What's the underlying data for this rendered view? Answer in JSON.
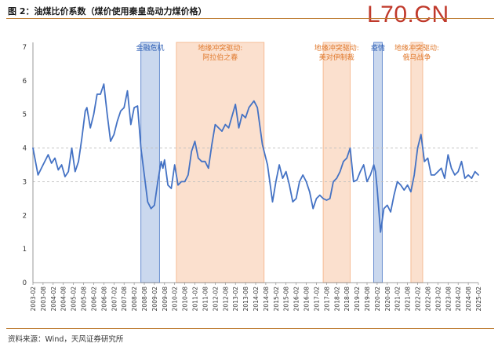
{
  "header": {
    "title": "图 2：油煤比价系数（煤价使用秦皇岛动力煤价格）",
    "watermark": "L70.CN"
  },
  "footer": {
    "source": "资料来源：Wind，天风证券研究所"
  },
  "colors": {
    "line": "#4472c4",
    "crisis_band": "#b4c7e7",
    "conflict_band": "#f8cbad",
    "crisis_text": "#2e5fb5",
    "conflict_text": "#e07a2e",
    "rule": "#bd7a2f"
  },
  "chart_data": {
    "type": "line",
    "title": "",
    "xlabel": "",
    "ylabel": "",
    "ylim": [
      0,
      7
    ],
    "yticks": [
      0,
      1,
      2,
      3,
      4,
      5,
      6,
      7
    ],
    "grid": "dashed horizontal at 3 and 4",
    "x_start": "2003-02",
    "x_end": "2025-02",
    "xtick_labels": [
      "2003-02",
      "2003-08",
      "2004-02",
      "2004-08",
      "2005-02",
      "2005-08",
      "2006-02",
      "2006-08",
      "2007-02",
      "2007-08",
      "2008-02",
      "2008-08",
      "2009-02",
      "2009-08",
      "2010-02",
      "2010-08",
      "2011-02",
      "2011-08",
      "2012-02",
      "2012-08",
      "2013-02",
      "2013-08",
      "2014-02",
      "2014-08",
      "2015-02",
      "2015-08",
      "2016-02",
      "2016-08",
      "2017-02",
      "2017-08",
      "2018-02",
      "2018-08",
      "2019-02",
      "2019-08",
      "2020-02",
      "2020-08",
      "2021-02",
      "2021-08",
      "2022-02",
      "2022-08",
      "2023-02",
      "2023-08",
      "2024-02",
      "2024-08",
      "2025-02"
    ],
    "bands": [
      {
        "start": "2008-06",
        "end": "2009-05",
        "kind": "crisis",
        "label": [
          "金融危机"
        ]
      },
      {
        "start": "2010-03",
        "end": "2014-07",
        "kind": "conflict",
        "label": [
          "地缘冲突驱动:",
          "阿拉伯之春"
        ]
      },
      {
        "start": "2017-06",
        "end": "2018-10",
        "kind": "conflict",
        "label": [
          "地缘冲突驱动:",
          "美对伊制裁"
        ]
      },
      {
        "start": "2019-12",
        "end": "2020-05",
        "kind": "crisis",
        "label": [
          "疫情"
        ]
      },
      {
        "start": "2021-10",
        "end": "2022-05",
        "kind": "conflict",
        "label": [
          "地缘冲突驱动:",
          "俄乌战争"
        ]
      }
    ],
    "series": [
      {
        "values": [
          [
            "2003-02",
            4.0
          ],
          [
            "2003-05",
            3.2
          ],
          [
            "2003-08",
            3.5
          ],
          [
            "2003-11",
            3.8
          ],
          [
            "2004-01",
            3.55
          ],
          [
            "2004-03",
            3.7
          ],
          [
            "2004-05",
            3.35
          ],
          [
            "2004-07",
            3.5
          ],
          [
            "2004-09",
            3.15
          ],
          [
            "2004-11",
            3.3
          ],
          [
            "2005-01",
            4.0
          ],
          [
            "2005-03",
            3.3
          ],
          [
            "2005-05",
            3.6
          ],
          [
            "2005-07",
            4.3
          ],
          [
            "2005-09",
            5.1
          ],
          [
            "2005-10",
            5.2
          ],
          [
            "2005-12",
            4.6
          ],
          [
            "2006-02",
            5.0
          ],
          [
            "2006-04",
            5.6
          ],
          [
            "2006-06",
            5.6
          ],
          [
            "2006-08",
            5.9
          ],
          [
            "2006-10",
            5.0
          ],
          [
            "2006-12",
            4.2
          ],
          [
            "2007-02",
            4.4
          ],
          [
            "2007-04",
            4.8
          ],
          [
            "2007-06",
            5.1
          ],
          [
            "2007-08",
            5.2
          ],
          [
            "2007-10",
            5.7
          ],
          [
            "2007-12",
            4.7
          ],
          [
            "2008-02",
            5.2
          ],
          [
            "2008-04",
            5.25
          ],
          [
            "2008-06",
            4.0
          ],
          [
            "2008-08",
            3.2
          ],
          [
            "2008-10",
            2.4
          ],
          [
            "2008-12",
            2.2
          ],
          [
            "2009-02",
            2.3
          ],
          [
            "2009-04",
            3.0
          ],
          [
            "2009-06",
            3.6
          ],
          [
            "2009-07",
            3.4
          ],
          [
            "2009-08",
            3.65
          ],
          [
            "2009-10",
            2.9
          ],
          [
            "2009-12",
            2.8
          ],
          [
            "2010-02",
            3.5
          ],
          [
            "2010-04",
            2.9
          ],
          [
            "2010-06",
            3.0
          ],
          [
            "2010-08",
            3.0
          ],
          [
            "2010-10",
            3.2
          ],
          [
            "2010-12",
            3.9
          ],
          [
            "2011-02",
            4.2
          ],
          [
            "2011-04",
            3.7
          ],
          [
            "2011-06",
            3.6
          ],
          [
            "2011-08",
            3.6
          ],
          [
            "2011-10",
            3.4
          ],
          [
            "2011-12",
            4.1
          ],
          [
            "2012-02",
            4.7
          ],
          [
            "2012-04",
            4.6
          ],
          [
            "2012-06",
            4.5
          ],
          [
            "2012-08",
            4.7
          ],
          [
            "2012-10",
            4.6
          ],
          [
            "2013-02",
            5.3
          ],
          [
            "2013-04",
            4.6
          ],
          [
            "2013-06",
            5.0
          ],
          [
            "2013-08",
            4.9
          ],
          [
            "2013-10",
            5.2
          ],
          [
            "2014-01",
            5.4
          ],
          [
            "2014-03",
            5.2
          ],
          [
            "2014-06",
            4.1
          ],
          [
            "2014-09",
            3.5
          ],
          [
            "2014-12",
            2.4
          ],
          [
            "2015-02",
            3.0
          ],
          [
            "2015-04",
            3.5
          ],
          [
            "2015-06",
            3.1
          ],
          [
            "2015-08",
            3.3
          ],
          [
            "2015-10",
            2.9
          ],
          [
            "2015-12",
            2.4
          ],
          [
            "2016-02",
            2.5
          ],
          [
            "2016-04",
            3.0
          ],
          [
            "2016-06",
            3.2
          ],
          [
            "2016-08",
            3.0
          ],
          [
            "2016-10",
            2.7
          ],
          [
            "2016-12",
            2.2
          ],
          [
            "2017-02",
            2.5
          ],
          [
            "2017-04",
            2.6
          ],
          [
            "2017-06",
            2.5
          ],
          [
            "2017-08",
            2.45
          ],
          [
            "2017-10",
            2.5
          ],
          [
            "2017-12",
            3.0
          ],
          [
            "2018-02",
            3.1
          ],
          [
            "2018-04",
            3.3
          ],
          [
            "2018-06",
            3.6
          ],
          [
            "2018-08",
            3.7
          ],
          [
            "2018-10",
            4.0
          ],
          [
            "2018-12",
            3.0
          ],
          [
            "2019-02",
            3.05
          ],
          [
            "2019-04",
            3.3
          ],
          [
            "2019-06",
            3.5
          ],
          [
            "2019-08",
            3.0
          ],
          [
            "2019-10",
            3.2
          ],
          [
            "2019-12",
            3.5
          ],
          [
            "2020-01",
            3.3
          ],
          [
            "2020-02",
            2.8
          ],
          [
            "2020-04",
            1.5
          ],
          [
            "2020-06",
            2.2
          ],
          [
            "2020-08",
            2.3
          ],
          [
            "2020-10",
            2.1
          ],
          [
            "2020-12",
            2.6
          ],
          [
            "2021-02",
            3.0
          ],
          [
            "2021-04",
            2.9
          ],
          [
            "2021-06",
            2.75
          ],
          [
            "2021-08",
            2.9
          ],
          [
            "2021-10",
            2.7
          ],
          [
            "2021-12",
            3.2
          ],
          [
            "2022-02",
            4.0
          ],
          [
            "2022-04",
            4.4
          ],
          [
            "2022-06",
            3.6
          ],
          [
            "2022-08",
            3.7
          ],
          [
            "2022-10",
            3.2
          ],
          [
            "2022-12",
            3.2
          ],
          [
            "2023-02",
            3.3
          ],
          [
            "2023-04",
            3.4
          ],
          [
            "2023-06",
            3.1
          ],
          [
            "2023-08",
            3.8
          ],
          [
            "2023-10",
            3.4
          ],
          [
            "2023-12",
            3.2
          ],
          [
            "2024-02",
            3.3
          ],
          [
            "2024-04",
            3.6
          ],
          [
            "2024-06",
            3.1
          ],
          [
            "2024-08",
            3.2
          ],
          [
            "2024-10",
            3.1
          ],
          [
            "2024-12",
            3.3
          ],
          [
            "2025-02",
            3.2
          ]
        ]
      }
    ]
  }
}
